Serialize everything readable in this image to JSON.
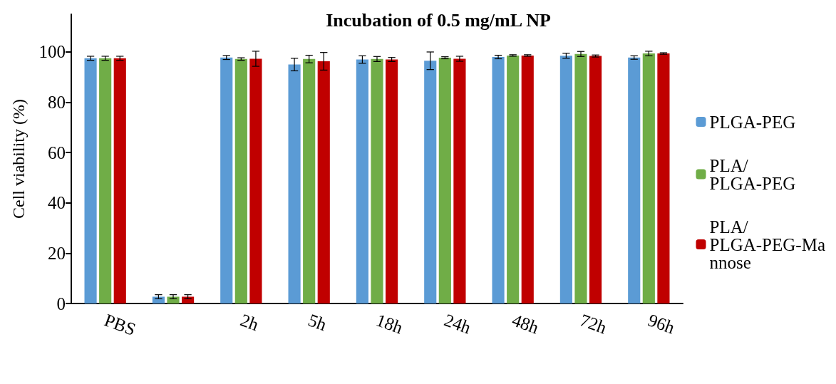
{
  "chart_data": {
    "type": "bar",
    "title": "Incubation of 0.5 mg/mL NP",
    "ylabel": "Cell viability (%)",
    "categories": [
      "PBS",
      null,
      "2h",
      "5h",
      "18h",
      "24h",
      "48h",
      "72h",
      "96h"
    ],
    "series": [
      {
        "name": "PLGA-PEG",
        "color": "#5b9bd5",
        "values": [
          97.5,
          2.7,
          97.8,
          95,
          97,
          96.5,
          98,
          98.5,
          97.8
        ],
        "errors": [
          0.8,
          0.8,
          0.8,
          2.5,
          1.5,
          3.5,
          0.7,
          1,
          0.7
        ]
      },
      {
        "name": "PLA/PLGA-PEG",
        "color": "#70ad47",
        "values": [
          97.5,
          2.7,
          97.2,
          97.2,
          97.2,
          97.7,
          98.6,
          99.2,
          99.4
        ],
        "errors": [
          0.8,
          0.8,
          0.5,
          1.5,
          1,
          0.4,
          0.3,
          1,
          0.9
        ]
      },
      {
        "name": "PLA/PLGA-PEG-Mannose",
        "color": "#c00000",
        "values": [
          97.5,
          2.7,
          97.3,
          96.3,
          97,
          97.3,
          98.6,
          98.4,
          99.4
        ],
        "errors": [
          0.8,
          0.8,
          3,
          3.5,
          0.8,
          1,
          0.3,
          0.4,
          0.3
        ]
      }
    ],
    "ylim": [
      0,
      115
    ],
    "yticks": [
      0,
      20,
      40,
      60,
      80,
      100
    ],
    "grid": false,
    "legend": "right"
  }
}
